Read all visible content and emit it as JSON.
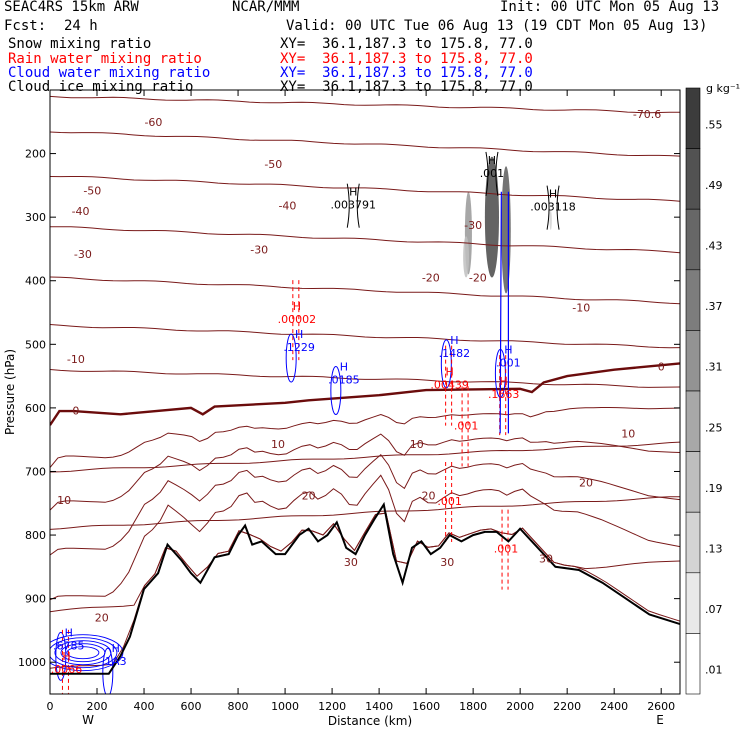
{
  "header": {
    "model": "SEAC4RS 15km ARW",
    "center": "NCAR/MMM",
    "init": "Init: 00 UTC Mon 05 Aug 13",
    "fcst_label": "Fcst:",
    "fcst_value": "24 h",
    "valid": "Valid: 00 UTC Tue 06 Aug 13 (19 CDT Mon 05 Aug 13)",
    "fields": [
      {
        "name": "Snow mixing ratio",
        "xy": "XY=  36.1,187.3 to 175.8, 77.0",
        "color": "#000000"
      },
      {
        "name": "Rain water mixing ratio",
        "xy": "XY=  36.1,187.3 to 175.8, 77.0",
        "color": "#ff0000"
      },
      {
        "name": "Cloud water mixing ratio",
        "xy": "XY=  36.1,187.3 to 175.8, 77.0",
        "color": "#0000ff"
      },
      {
        "name": "Cloud ice mixing ratio",
        "xy": "XY=  36.1,187.3 to 175.8, 77.0",
        "color": "#000000"
      }
    ]
  },
  "colorbar": {
    "unit": "g kg⁻¹",
    "labels": [
      ".55",
      ".49",
      ".43",
      ".37",
      ".31",
      ".25",
      ".19",
      ".13",
      ".07",
      ".01"
    ]
  },
  "chart_data": {
    "type": "cross-section contour",
    "xlabel": "Distance (km)",
    "ylabel": "Pressure (hPa)",
    "xlim": [
      0,
      2680
    ],
    "ylim": [
      1050,
      100
    ],
    "x_ticks": [
      "0",
      "200",
      "400",
      "600",
      "800",
      "1000",
      "1200",
      "1400",
      "1600",
      "1800",
      "2000",
      "2200",
      "2400",
      "2600"
    ],
    "y_ticks": [
      "200",
      "300",
      "400",
      "500",
      "600",
      "700",
      "800",
      "900",
      "1000"
    ],
    "y_tick_values": [
      200,
      300,
      400,
      500,
      600,
      700,
      800,
      900,
      1000
    ],
    "x_tick_values": [
      0,
      200,
      400,
      600,
      800,
      1000,
      1200,
      1400,
      1600,
      1800,
      2000,
      2200,
      2400,
      2600
    ],
    "direction_left": "W",
    "direction_right": "E",
    "temperature_labels": [
      {
        "text": "-60",
        "x": 440,
        "p": 150
      },
      {
        "text": "-70.6",
        "x": 2540,
        "p": 138
      },
      {
        "text": "-50",
        "x": 180,
        "p": 258
      },
      {
        "text": "-50",
        "x": 950,
        "p": 216
      },
      {
        "text": "-40",
        "x": 130,
        "p": 290
      },
      {
        "text": "-40",
        "x": 1010,
        "p": 282
      },
      {
        "text": "-30",
        "x": 140,
        "p": 358
      },
      {
        "text": "-30",
        "x": 890,
        "p": 351
      },
      {
        "text": "-30",
        "x": 1800,
        "p": 312
      },
      {
        "text": "-20",
        "x": 1620,
        "p": 395
      },
      {
        "text": "-20",
        "x": 1820,
        "p": 395
      },
      {
        "text": "-10",
        "x": 2260,
        "p": 442
      },
      {
        "text": "-10",
        "x": 110,
        "p": 523
      },
      {
        "text": "0",
        "x": 2600,
        "p": 535
      },
      {
        "text": "0",
        "x": 110,
        "p": 604
      },
      {
        "text": "10",
        "x": 970,
        "p": 657
      },
      {
        "text": "10",
        "x": 1560,
        "p": 657
      },
      {
        "text": "10",
        "x": 2460,
        "p": 640
      },
      {
        "text": "10",
        "x": 60,
        "p": 745
      },
      {
        "text": "20",
        "x": 1100,
        "p": 738
      },
      {
        "text": "20",
        "x": 1610,
        "p": 738
      },
      {
        "text": "20",
        "x": 2280,
        "p": 717
      },
      {
        "text": "20",
        "x": 220,
        "p": 930
      },
      {
        "text": "30",
        "x": 1280,
        "p": 842
      },
      {
        "text": "30",
        "x": 1690,
        "p": 842
      },
      {
        "text": "30",
        "x": 2110,
        "p": 837
      }
    ],
    "maxima": [
      {
        "field": "snow",
        "value": ".003791",
        "x": 1290,
        "p": 282,
        "color": "#000000"
      },
      {
        "field": "snow",
        "value": ".003118",
        "x": 2140,
        "p": 285,
        "color": "#000000"
      },
      {
        "field": "snow",
        "value": ".001",
        "x": 1880,
        "p": 232,
        "color": "#000000"
      },
      {
        "field": "rain",
        "value": ".00002",
        "x": 1050,
        "p": 462,
        "color": "#ff0000"
      },
      {
        "field": "cloud",
        "value": ".1229",
        "x": 1060,
        "p": 506,
        "color": "#0000ff"
      },
      {
        "field": "cloud",
        "value": ".0185",
        "x": 1250,
        "p": 557,
        "color": "#0000ff"
      },
      {
        "field": "cloud",
        "value": ".1482",
        "x": 1720,
        "p": 515,
        "color": "#0000ff"
      },
      {
        "field": "rain",
        "value": ".00439",
        "x": 1700,
        "p": 565,
        "color": "#ff0000"
      },
      {
        "field": "cloud",
        "value": ".001",
        "x": 1950,
        "p": 530,
        "color": "#0000ff"
      },
      {
        "field": "rain",
        "value": ".1663",
        "x": 1930,
        "p": 580,
        "color": "#ff0000"
      },
      {
        "field": "rain",
        "value": ".001",
        "x": 1770,
        "p": 629,
        "color": "#ff0000"
      },
      {
        "field": "rain",
        "value": ".001",
        "x": 1700,
        "p": 748,
        "color": "#ff0000"
      },
      {
        "field": "rain",
        "value": ".001",
        "x": 1940,
        "p": 823,
        "color": "#ff0000"
      },
      {
        "field": "cloud",
        "value": ".6785",
        "x": 80,
        "p": 975,
        "color": "#0000ff"
      },
      {
        "field": "rain",
        "value": ".0066",
        "x": 70,
        "p": 1012,
        "color": "#ff0000"
      },
      {
        "field": "cloud",
        "value": "1A3",
        "x": 280,
        "p": 1000,
        "color": "#0000ff"
      }
    ],
    "terrain": [
      [
        0,
        1018
      ],
      [
        250,
        1018
      ],
      [
        300,
        990
      ],
      [
        340,
        960
      ],
      [
        400,
        885
      ],
      [
        460,
        860
      ],
      [
        500,
        815
      ],
      [
        560,
        840
      ],
      [
        600,
        860
      ],
      [
        640,
        875
      ],
      [
        700,
        835
      ],
      [
        760,
        830
      ],
      [
        800,
        800
      ],
      [
        830,
        785
      ],
      [
        860,
        815
      ],
      [
        900,
        810
      ],
      [
        960,
        830
      ],
      [
        1000,
        830
      ],
      [
        1060,
        800
      ],
      [
        1100,
        790
      ],
      [
        1140,
        810
      ],
      [
        1180,
        800
      ],
      [
        1220,
        780
      ],
      [
        1260,
        820
      ],
      [
        1300,
        830
      ],
      [
        1340,
        800
      ],
      [
        1380,
        775
      ],
      [
        1420,
        752
      ],
      [
        1460,
        830
      ],
      [
        1500,
        875
      ],
      [
        1540,
        820
      ],
      [
        1580,
        810
      ],
      [
        1620,
        830
      ],
      [
        1660,
        820
      ],
      [
        1700,
        800
      ],
      [
        1750,
        810
      ],
      [
        1800,
        800
      ],
      [
        1850,
        795
      ],
      [
        1900,
        795
      ],
      [
        1950,
        810
      ],
      [
        2000,
        790
      ],
      [
        2050,
        810
      ],
      [
        2150,
        850
      ],
      [
        2250,
        855
      ],
      [
        2350,
        875
      ],
      [
        2450,
        900
      ],
      [
        2550,
        925
      ],
      [
        2680,
        940
      ]
    ],
    "freezing_level": [
      [
        0,
        627
      ],
      [
        40,
        605
      ],
      [
        100,
        605
      ],
      [
        300,
        610
      ],
      [
        600,
        600
      ],
      [
        650,
        610
      ],
      [
        700,
        598
      ],
      [
        1000,
        592
      ],
      [
        1100,
        588
      ],
      [
        1400,
        580
      ],
      [
        1600,
        572
      ],
      [
        2000,
        570
      ],
      [
        2050,
        575
      ],
      [
        2100,
        560
      ],
      [
        2200,
        550
      ],
      [
        2400,
        540
      ],
      [
        2680,
        530
      ]
    ],
    "isotherm_profiles": [
      {
        "left": 110,
        "right": 136
      },
      {
        "left": 165,
        "right": 205
      },
      {
        "left": 235,
        "right": 275
      },
      {
        "left": 315,
        "right": 355
      },
      {
        "left": 395,
        "right": 435
      },
      {
        "left": 470,
        "right": 505
      },
      {
        "left": 540,
        "right": 568
      },
      {
        "left": 700,
        "right": 655
      },
      {
        "left": 790,
        "right": 740
      },
      {
        "left": 920,
        "right": 840
      },
      {
        "left": 1010,
        "right": 935
      }
    ],
    "shading": [
      {
        "x": 1880,
        "p_top": 205,
        "p_bottom": 395,
        "width": 60,
        "value": 0.55
      },
      {
        "x": 1940,
        "p_top": 220,
        "p_bottom": 420,
        "width": 40,
        "value": 0.49
      },
      {
        "x": 1780,
        "p_top": 260,
        "p_bottom": 390,
        "width": 30,
        "value": 0.31
      },
      {
        "x": 1770,
        "p_top": 330,
        "p_bottom": 395,
        "width": 25,
        "value": 0.19
      },
      {
        "x": 2130,
        "p_top": 290,
        "p_bottom": 320,
        "width": 10,
        "value": 0.13
      }
    ]
  }
}
